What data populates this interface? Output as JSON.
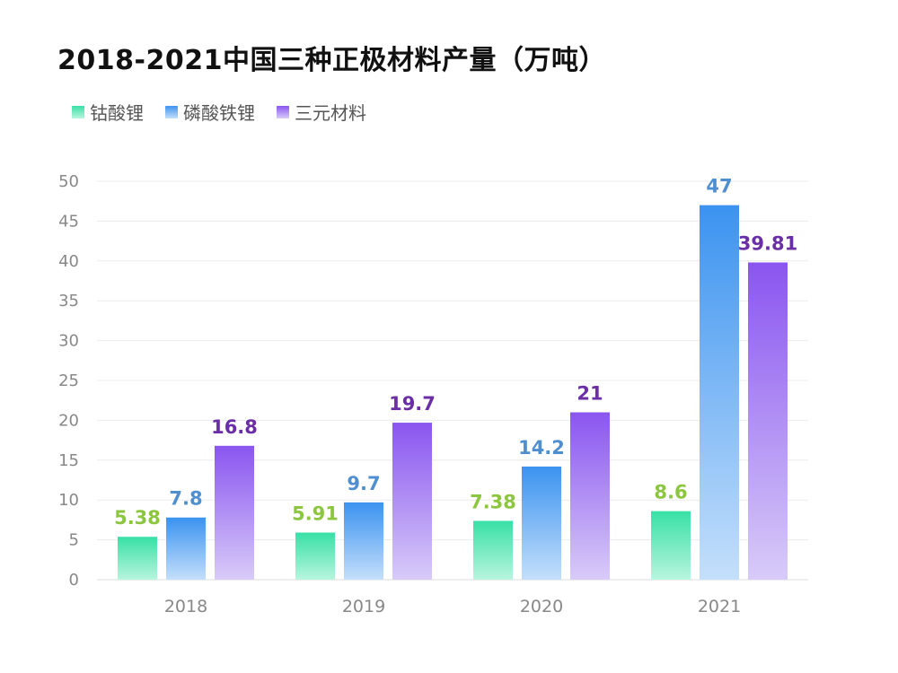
{
  "title": "2018-2021中国三种正极材料产量（万吨）",
  "colors": {
    "series_top": [
      "#38e0a6",
      "#3b93f0",
      "#8a55f0"
    ],
    "series_bottom": [
      "#b8f5df",
      "#c4dffb",
      "#d8cbf8"
    ],
    "label_colors": [
      "#8cc63f",
      "#4f8fd0",
      "#6a2fa6"
    ],
    "grid": "#ececec",
    "axis": "#dddddd"
  },
  "chart_data": {
    "type": "bar",
    "categories": [
      "2018",
      "2019",
      "2020",
      "2021"
    ],
    "series": [
      {
        "name": "钴酸锂",
        "values": [
          5.38,
          5.91,
          7.38,
          8.6
        ]
      },
      {
        "name": "磷酸铁锂",
        "values": [
          7.8,
          9.7,
          14.2,
          47
        ]
      },
      {
        "name": "三元材料",
        "values": [
          16.8,
          19.7,
          21,
          39.81
        ]
      }
    ],
    "yticks": [
      "0",
      "5",
      "10",
      "15",
      "20",
      "25",
      "30",
      "35",
      "40",
      "45",
      "50"
    ],
    "ylim": [
      0,
      50
    ],
    "grid": true,
    "legend_position": "top-left"
  }
}
